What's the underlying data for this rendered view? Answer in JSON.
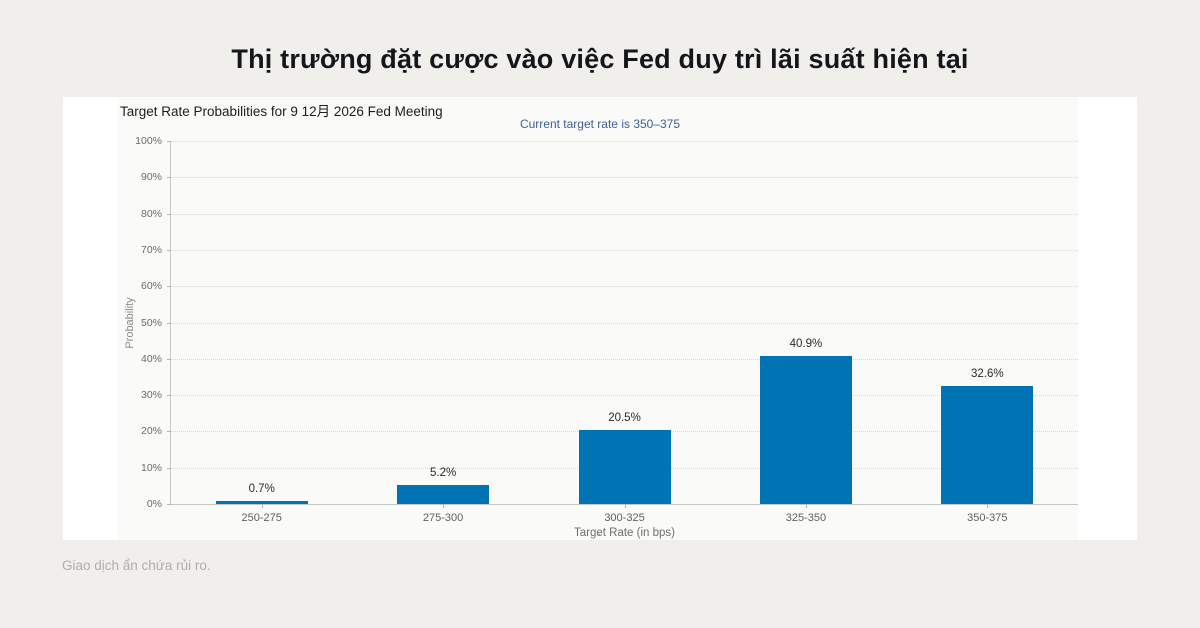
{
  "page": {
    "title": "Thị trường đặt cược vào việc Fed duy trì lãi suất hiện tại",
    "footer": "Giao dịch ẩn chứa rủi ro."
  },
  "colors": {
    "page_background": "#f0efec",
    "card_background": "#ffffff",
    "bar": "#0073b4",
    "subtitle_text": "#3f5f94"
  },
  "icons": {
    "caret": "ˆ"
  },
  "chart_data": {
    "type": "bar",
    "title": "Target Rate Probabilities for 9 12月 2026 Fed Meeting",
    "subtitle": "Current target rate is 350–375",
    "categories": [
      "250-275",
      "275-300",
      "300-325",
      "325-350",
      "350-375"
    ],
    "values": [
      0.7,
      5.2,
      20.5,
      40.9,
      32.6
    ],
    "value_labels": [
      "0.7%",
      "5.2%",
      "20.5%",
      "40.9%",
      "32.6%"
    ],
    "xlabel": "Target Rate (in bps)",
    "ylabel": "Probability",
    "ylim": [
      0,
      100
    ],
    "ytick_step": 10,
    "ytick_suffix": "%",
    "grid": "horizontal-dotted",
    "legend": "none",
    "bar_color": "#0073b4"
  }
}
